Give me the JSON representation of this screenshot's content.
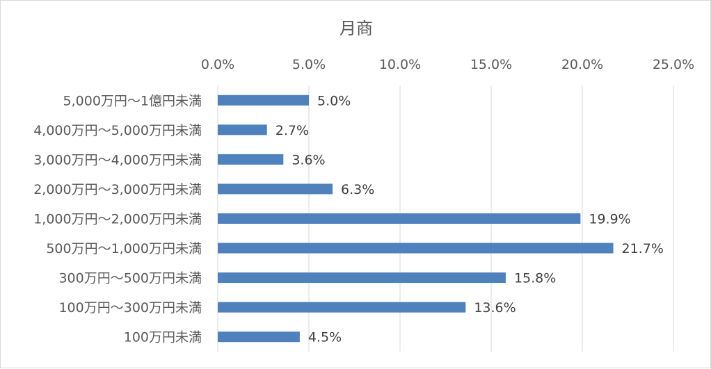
{
  "chart_data": {
    "type": "bar",
    "orientation": "horizontal",
    "title": "月商",
    "categories": [
      "5,000万円～1億円未満",
      "4,000万円～5,000万円未満",
      "3,000万円～4,000万円未満",
      "2,000万円～3,000万円未満",
      "1,000万円～2,000万円未満",
      "500万円～1,000万円未満",
      "300万円～500万円未満",
      "100万円～300万円未満",
      "100万円未満"
    ],
    "values": [
      5.0,
      2.7,
      3.6,
      6.3,
      19.9,
      21.7,
      15.8,
      13.6,
      4.5
    ],
    "data_labels": [
      "5.0%",
      "2.7%",
      "3.6%",
      "6.3%",
      "19.9%",
      "21.7%",
      "15.8%",
      "13.6%",
      "4.5%"
    ],
    "x_ticks": [
      "0.0%",
      "5.0%",
      "10.0%",
      "15.0%",
      "20.0%",
      "25.0%"
    ],
    "xlim": [
      0,
      25
    ],
    "xlabel": "",
    "ylabel": "",
    "grid": true,
    "x_axis_position": "top",
    "legend": "none",
    "bar_color": "#4f81bd"
  }
}
